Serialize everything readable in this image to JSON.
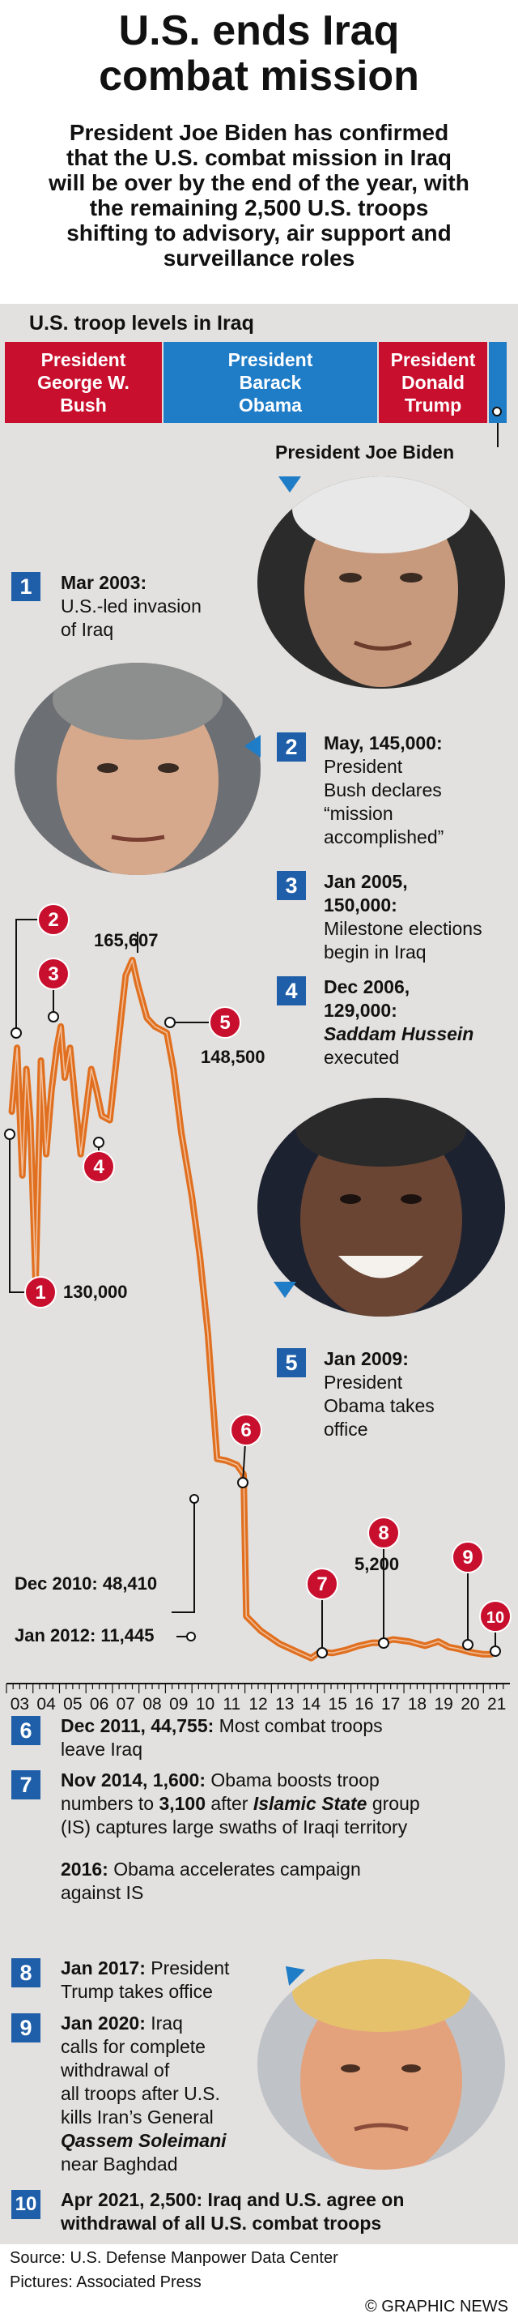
{
  "title_line1": "U.S. ends Iraq",
  "title_line2": "combat mission",
  "intro_lines": [
    "President Joe Biden has confirmed",
    "that the U.S. combat mission in Iraq",
    "will be over by the end of the year, with",
    "the remaining 2,500 U.S. troops",
    "shifting to advisory, air support and",
    "surveillance roles"
  ],
  "panel_label": "U.S. troop levels in Iraq",
  "eras": {
    "bush": [
      "President",
      "George W.",
      "Bush"
    ],
    "obama": [
      "President",
      "Barack",
      "Obama"
    ],
    "trump": [
      "President",
      "Donald",
      "Trump"
    ]
  },
  "biden_label": "President Joe Biden",
  "colors": {
    "republican": "#c8102e",
    "democrat": "#1f7cc7",
    "line": "#e07020",
    "marker": "#c8102e",
    "box": "#1f5ea8",
    "panel": "#e3e1df"
  },
  "events": [
    {
      "n": "1",
      "head": "Mar 2003:",
      "body": [
        "U.S.-led invasion",
        "of Iraq"
      ]
    },
    {
      "n": "2",
      "head": "May, 145,000:",
      "body": [
        "President",
        "Bush declares",
        "“mission",
        "accomplished”"
      ]
    },
    {
      "n": "3",
      "head": "Jan 2005,",
      "head2": "150,000:",
      "body": [
        "Milestone elections",
        "begin in Iraq"
      ]
    },
    {
      "n": "4",
      "head": "Dec 2006,",
      "head2": "129,000:",
      "italic": "Saddam Hussein",
      "body": [
        "executed"
      ]
    },
    {
      "n": "5",
      "head": "Jan 2009:",
      "body": [
        "President",
        "Obama takes",
        "office"
      ]
    },
    {
      "n": "6",
      "head": "Dec 2011, 44,755:",
      "body_inline": "Most combat troops",
      "body": [
        "leave Iraq"
      ]
    },
    {
      "n": "7",
      "head": "Nov 2014, 1,600:",
      "body_inline": "Obama boosts troop",
      "l2a": "numbers to ",
      "l2b": "3,100",
      "l2c": " after ",
      "l2d": "Islamic State",
      "l2e": " group",
      "body": [
        "(IS) captures large swaths of Iraqi territory"
      ]
    },
    {
      "sub_head": "2016:",
      "sub_body": "Obama accelerates campaign",
      "sub_body2": "against IS"
    },
    {
      "n": "8",
      "head": "Jan 2017:",
      "body_inline": "President",
      "body": [
        "Trump takes office"
      ]
    },
    {
      "n": "9",
      "head": "Jan 2020:",
      "body_inline": "Iraq",
      "body": [
        "calls for complete",
        "withdrawal of",
        "all troops after U.S.",
        "kills Iran’s General"
      ],
      "italic": "Qassem Soleimani",
      "body2": [
        "near Baghdad"
      ]
    },
    {
      "n": "10",
      "head": "Apr 2021, 2,500: Iraq and U.S. agree on",
      "head2": "withdrawal of all U.S. combat troops"
    }
  ],
  "chart_data": {
    "type": "line",
    "title": "U.S. troop levels in Iraq",
    "xlabel": "",
    "ylabel": "",
    "x_tick_labels": [
      "03",
      "04",
      "05",
      "06",
      "07",
      "08",
      "09",
      "10",
      "11",
      "12",
      "13",
      "14",
      "15",
      "16",
      "17",
      "18",
      "19",
      "20",
      "21"
    ],
    "series": [
      {
        "x": [
          2003.2,
          2003.4,
          2003.6,
          2003.75,
          2003.9,
          2004.1,
          2004.3,
          2004.5,
          2004.7,
          2004.9,
          2005.05,
          2005.2,
          2005.4,
          2005.6,
          2005.8,
          2006.0,
          2006.2,
          2006.4,
          2006.6,
          2006.9,
          2007.2,
          2007.5,
          2007.75,
          2007.95,
          2008.3,
          2008.6,
          2009.05,
          2009.3,
          2009.6,
          2010.0,
          2010.3,
          2010.6,
          2010.95,
          2011.3,
          2011.7,
          2011.95,
          2012.05,
          2012.6,
          2013.3,
          2014.0,
          2014.5,
          2014.85,
          2015.3,
          2015.8,
          2016.3,
          2016.8,
          2017.05,
          2017.6,
          2018.2,
          2018.8,
          2019.3,
          2019.7,
          2020.05,
          2020.5,
          2021.0,
          2021.3
        ],
        "values": [
          130000,
          145000,
          115000,
          140000,
          128000,
          90000,
          142000,
          120000,
          135000,
          145000,
          150000,
          138000,
          145000,
          132000,
          120000,
          130000,
          140000,
          135000,
          129000,
          128000,
          145000,
          162000,
          165607,
          160000,
          152000,
          150000,
          148500,
          140000,
          125000,
          110000,
          96000,
          78000,
          48410,
          48000,
          47000,
          44755,
          11445,
          8000,
          5000,
          3000,
          1600,
          3100,
          2800,
          3500,
          4500,
          5200,
          5200,
          6000,
          5500,
          4500,
          5500,
          4200,
          3800,
          3000,
          2500,
          2500
        ]
      }
    ],
    "annotations": [
      "165,607",
      "148,500",
      "130,000",
      "Dec 2010: 48,410",
      "Jan 2012: 11,445",
      "5,200"
    ],
    "marker_numbers": [
      "1",
      "2",
      "3",
      "4",
      "5",
      "6",
      "7",
      "8",
      "9",
      "10"
    ]
  },
  "sources": {
    "line1": "Source: U.S. Defense Manpower Data Center",
    "line2": "Pictures: Associated Press",
    "credit": "© GRAPHIC NEWS"
  },
  "photo_alts": {
    "bush": "George W. Bush",
    "obama": "Barack Obama",
    "biden": "Joe Biden",
    "trump": "Donald Trump"
  }
}
